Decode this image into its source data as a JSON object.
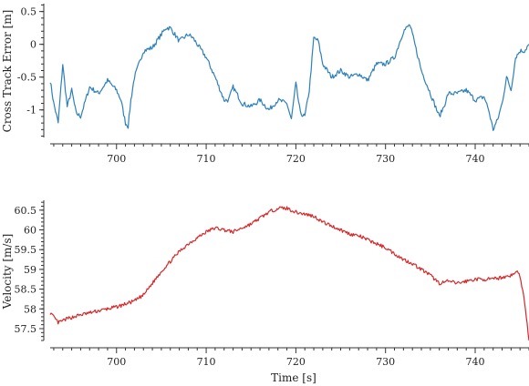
{
  "chart_data": [
    {
      "type": "line",
      "ylabel": "Cross Track Error [m]",
      "xlabel": "",
      "xlim": [
        692.6,
        746
      ],
      "ylim": [
        -1.42,
        0.62
      ],
      "xticks": [
        700,
        710,
        720,
        730,
        740
      ],
      "yticks": [
        0.5,
        0,
        -0.5,
        -1
      ],
      "ytick_labels": [
        "0.5",
        "0",
        "-0.5",
        "-1"
      ],
      "grid": false,
      "color": "#2e80b9",
      "series": [
        {
          "x": [
            692.6,
            693.0,
            693.5,
            694.0,
            694.5,
            695.0,
            695.5,
            696.0,
            697.0,
            698.0,
            699.0,
            700.0,
            700.5,
            701.0,
            701.3,
            701.6,
            702.0,
            702.5,
            703.0,
            704.0,
            705.0,
            705.5,
            706.0,
            706.5,
            707.0,
            708.0,
            708.5,
            709.0,
            710.0,
            711.0,
            712.0,
            712.5,
            713.0,
            714.0,
            715.0,
            716.0,
            717.0,
            718.0,
            719.0,
            719.5,
            720.0,
            720.5,
            721.0,
            721.5,
            722.0,
            722.5,
            723.0,
            724.0,
            725.0,
            726.0,
            727.0,
            728.0,
            729.0,
            730.0,
            731.0,
            732.0,
            732.7,
            733.0,
            734.0,
            735.0,
            736.0,
            736.5,
            737.0,
            738.0,
            739.0,
            740.0,
            741.0,
            741.5,
            742.0,
            742.5,
            743.0,
            743.5,
            744.0,
            744.5,
            745.0,
            745.5,
            746.0
          ],
          "y": [
            -0.55,
            -0.9,
            -1.2,
            -0.3,
            -0.95,
            -0.7,
            -1.05,
            -1.1,
            -0.65,
            -0.75,
            -0.55,
            -0.7,
            -0.85,
            -1.2,
            -1.25,
            -0.85,
            -0.5,
            -0.3,
            -0.1,
            -0.05,
            0.15,
            0.25,
            0.25,
            0.15,
            0.05,
            0.15,
            0.1,
            0.0,
            -0.2,
            -0.5,
            -0.85,
            -0.85,
            -0.65,
            -0.9,
            -0.95,
            -0.85,
            -1.0,
            -0.85,
            -0.9,
            -1.15,
            -0.6,
            -1.05,
            -1.1,
            -0.7,
            0.1,
            0.05,
            -0.3,
            -0.5,
            -0.4,
            -0.5,
            -0.45,
            -0.55,
            -0.3,
            -0.3,
            -0.2,
            0.2,
            0.3,
            0.15,
            -0.4,
            -0.75,
            -1.1,
            -0.95,
            -0.75,
            -0.75,
            -0.7,
            -0.85,
            -0.8,
            -1.0,
            -1.3,
            -1.15,
            -0.9,
            -0.5,
            -0.7,
            -0.2,
            -0.1,
            -0.1,
            0.0
          ]
        }
      ]
    },
    {
      "type": "line",
      "ylabel": "Velocity [m/s]",
      "xlabel": "Time [s]",
      "xlim": [
        692.6,
        746
      ],
      "ylim": [
        57.2,
        60.75
      ],
      "xticks": [
        700,
        710,
        720,
        730,
        740
      ],
      "yticks": [
        60.5,
        60,
        59.5,
        59,
        58.5,
        58,
        57.5
      ],
      "ytick_labels": [
        "60.5",
        "60",
        "59.5",
        "59",
        "58.5",
        "58",
        "57.5"
      ],
      "grid": false,
      "color": "#d62728",
      "series": [
        {
          "x": [
            692.6,
            693.5,
            694.5,
            696.0,
            698.0,
            700.0,
            702.0,
            703.0,
            704.0,
            705.0,
            706.0,
            707.0,
            708.0,
            709.0,
            710.0,
            711.0,
            712.0,
            713.0,
            714.0,
            715.0,
            716.0,
            717.0,
            718.0,
            719.0,
            720.0,
            721.0,
            722.0,
            723.0,
            724.0,
            725.0,
            726.0,
            727.0,
            728.0,
            729.0,
            730.0,
            731.0,
            732.0,
            733.0,
            734.0,
            735.0,
            736.0,
            737.0,
            738.0,
            739.0,
            740.0,
            741.0,
            742.0,
            743.0,
            744.0,
            744.8,
            745.3,
            745.7,
            746.0
          ],
          "y": [
            57.9,
            57.65,
            57.75,
            57.85,
            57.95,
            58.05,
            58.2,
            58.35,
            58.65,
            58.95,
            59.2,
            59.45,
            59.65,
            59.8,
            59.95,
            60.05,
            60.0,
            59.95,
            60.05,
            60.15,
            60.3,
            60.45,
            60.55,
            60.55,
            60.45,
            60.4,
            60.35,
            60.2,
            60.1,
            60.0,
            59.9,
            59.85,
            59.75,
            59.65,
            59.55,
            59.4,
            59.25,
            59.15,
            59.0,
            58.85,
            58.65,
            58.7,
            58.65,
            58.7,
            58.75,
            58.75,
            58.75,
            58.8,
            58.85,
            58.95,
            58.5,
            57.8,
            57.2
          ]
        }
      ]
    }
  ]
}
